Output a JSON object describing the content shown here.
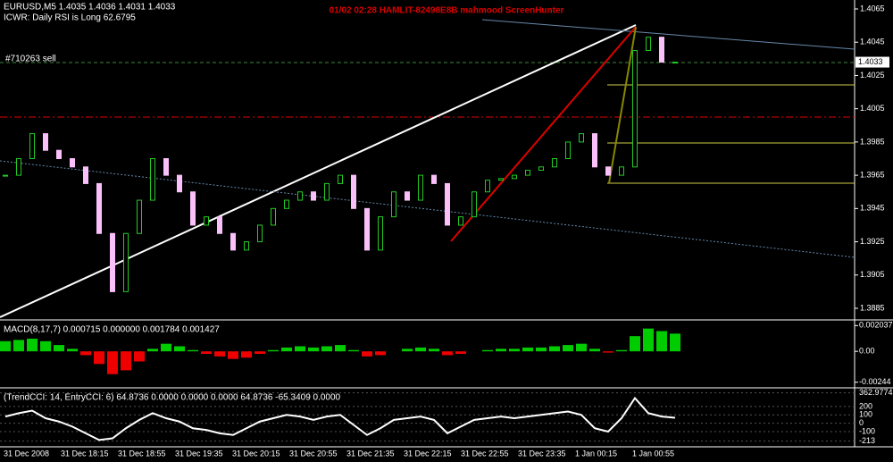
{
  "header": {
    "symbol_line": "EURUSD,M5  1.4035 1.4036 1.4031 1.4033",
    "rsi_line": "ICWR: Daily RSI is Long 62.6795",
    "watermark": "01/02  02:28  HAMLIT-82498E8B  mahmood  ScreenHunter"
  },
  "main_panel": {
    "order_label": "#710263 sell",
    "price_label": 1.4033,
    "ylim": [
      1.3885,
      1.4065
    ],
    "yticks": [
      1.4065,
      1.4045,
      1.4025,
      1.4005,
      1.3985,
      1.3965,
      1.3945,
      1.3925,
      1.3905,
      1.3885
    ],
    "closes": [
      1.3965,
      1.3975,
      1.399,
      1.398,
      1.3975,
      1.397,
      1.396,
      1.393,
      1.3895,
      1.393,
      1.395,
      1.3975,
      1.3965,
      1.3955,
      1.3935,
      1.394,
      1.393,
      1.392,
      1.3925,
      1.3935,
      1.3945,
      1.395,
      1.3955,
      1.395,
      1.396,
      1.3965,
      1.3945,
      1.392,
      1.394,
      1.3955,
      1.395,
      1.3965,
      1.396,
      1.3935,
      1.394,
      1.3955,
      1.3962,
      1.3963,
      1.3965,
      1.3968,
      1.397,
      1.3975,
      1.3985,
      1.399,
      1.397,
      1.3965,
      1.397,
      1.404,
      1.4048,
      1.4033,
      1.4033
    ]
  },
  "macd_panel": {
    "label": "MACD(8,17,7) 0.000715 0.000000 0.001784 0.001427",
    "ylim": [
      -0.0026,
      0.0022
    ],
    "yticks": [
      0.002037,
      {
        "value": 0,
        "label": "0.00"
      },
      -0.00244
    ],
    "histogram": [
      0.0008,
      0.0009,
      0.001,
      0.0008,
      0.0005,
      0.0002,
      -0.0003,
      -0.001,
      -0.0018,
      -0.0015,
      -0.0008,
      0.0002,
      0.0006,
      0.0004,
      0.0001,
      -0.0002,
      -0.0004,
      -0.0006,
      -0.0005,
      -0.0002,
      0.0001,
      0.0003,
      0.0004,
      0.0003,
      0.0004,
      0.0005,
      0.0001,
      -0.0004,
      -0.0003,
      0,
      0.0002,
      0.0003,
      0.0002,
      -0.0003,
      -0.0002,
      0,
      0.0001,
      0.0002,
      0.0002,
      0.0003,
      0.0003,
      0.0004,
      0.0005,
      0.0006,
      0.0002,
      -0.0001,
      0.0001,
      0.0012,
      0.0018,
      0.0016,
      0.0014
    ]
  },
  "cci_panel": {
    "label": "(TrendCCI: 14, EntryCCI: 6)  64.8736 0.0000 0.0000 0.0000 64.8736 -65.3409 0.0000",
    "ylim": [
      -260,
      380
    ],
    "yticks": [
      362.9774,
      200,
      100,
      0,
      -100,
      -213
    ],
    "cci": [
      80,
      120,
      150,
      60,
      20,
      -40,
      -120,
      -200,
      -180,
      -60,
      40,
      120,
      60,
      20,
      -60,
      -80,
      -120,
      -140,
      -60,
      20,
      60,
      100,
      80,
      40,
      80,
      100,
      -20,
      -140,
      -60,
      40,
      60,
      80,
      40,
      -120,
      -40,
      40,
      60,
      80,
      60,
      80,
      100,
      120,
      140,
      100,
      -60,
      -100,
      60,
      300,
      120,
      80,
      64.8736
    ]
  },
  "time_axis": {
    "labels": [
      "31 Dec 2008",
      "31 Dec 18:15",
      "31 Dec 18:55",
      "31 Dec 19:35",
      "31 Dec 20:15",
      "31 Dec 20:55",
      "31 Dec 21:35",
      "31 Dec 22:15",
      "31 Dec 22:55",
      "31 Dec 23:35",
      "1 Jan 00:15",
      "1 Jan 00:55"
    ]
  }
}
